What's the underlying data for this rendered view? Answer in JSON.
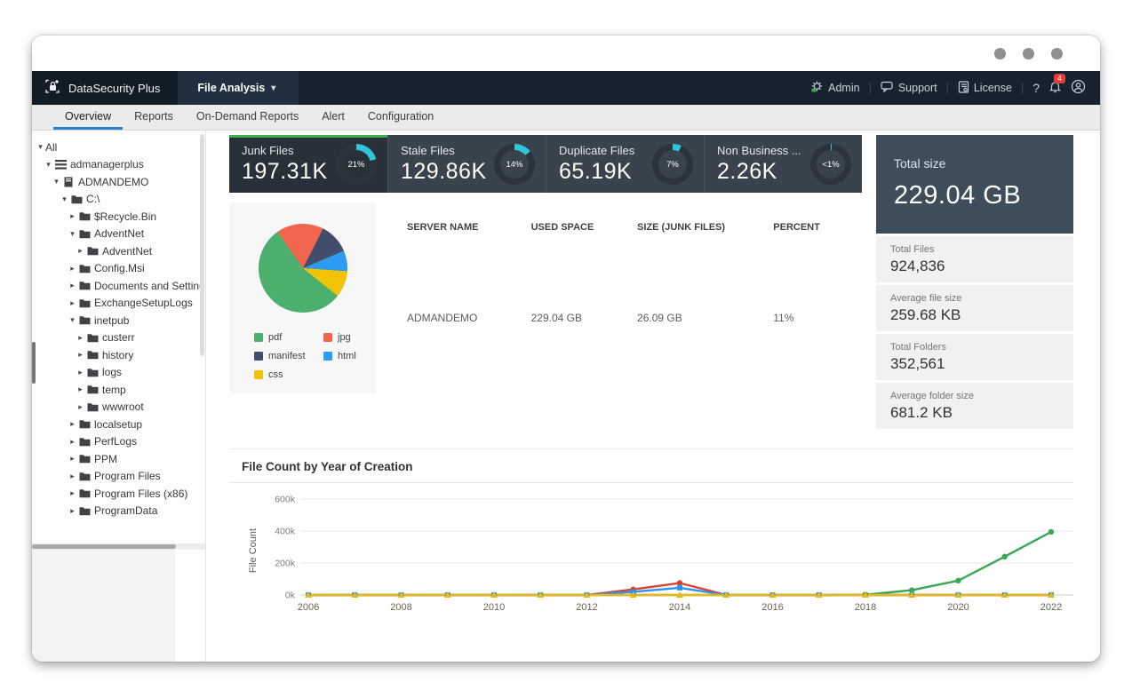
{
  "navbar": {
    "brand": "DataSecurity Plus",
    "module": "File Analysis",
    "links": [
      {
        "label": "Admin",
        "icon": "gear-icon"
      },
      {
        "label": "Support",
        "icon": "chat-icon"
      },
      {
        "label": "License",
        "icon": "license-icon"
      }
    ],
    "help_label": "?",
    "notification_count": "4"
  },
  "tabs": {
    "items": [
      "Overview",
      "Reports",
      "On-Demand Reports",
      "Alert",
      "Configuration"
    ],
    "active_index": 0
  },
  "sidebar": {
    "tree": [
      {
        "label": "All",
        "level": 0,
        "caret": "open",
        "icon": null
      },
      {
        "label": "admanagerplus",
        "level": 1,
        "caret": "open",
        "icon": "list"
      },
      {
        "label": "ADMANDEMO",
        "level": 2,
        "caret": "open",
        "icon": "server"
      },
      {
        "label": "C:\\",
        "level": 3,
        "caret": "open",
        "icon": "folder"
      },
      {
        "label": "$Recycle.Bin",
        "level": 4,
        "caret": "closed",
        "icon": "folder"
      },
      {
        "label": "AdventNet",
        "level": 4,
        "caret": "open",
        "icon": "folder"
      },
      {
        "label": "AdventNet",
        "level": 5,
        "caret": "closed",
        "icon": "folder"
      },
      {
        "label": "Config.Msi",
        "level": 4,
        "caret": "closed",
        "icon": "folder"
      },
      {
        "label": "Documents and Settings",
        "level": 4,
        "caret": "closed",
        "icon": "folder"
      },
      {
        "label": "ExchangeSetupLogs",
        "level": 4,
        "caret": "closed",
        "icon": "folder"
      },
      {
        "label": "inetpub",
        "level": 4,
        "caret": "open",
        "icon": "folder"
      },
      {
        "label": "custerr",
        "level": 5,
        "caret": "closed",
        "icon": "folder"
      },
      {
        "label": "history",
        "level": 5,
        "caret": "closed",
        "icon": "folder"
      },
      {
        "label": "logs",
        "level": 5,
        "caret": "closed",
        "icon": "folder"
      },
      {
        "label": "temp",
        "level": 5,
        "caret": "closed",
        "icon": "folder"
      },
      {
        "label": "wwwroot",
        "level": 5,
        "caret": "closed",
        "icon": "folder"
      },
      {
        "label": "localsetup",
        "level": 4,
        "caret": "closed",
        "icon": "folder"
      },
      {
        "label": "PerfLogs",
        "level": 4,
        "caret": "closed",
        "icon": "folder"
      },
      {
        "label": "PPM",
        "level": 4,
        "caret": "closed",
        "icon": "folder"
      },
      {
        "label": "Program Files",
        "level": 4,
        "caret": "closed",
        "icon": "folder"
      },
      {
        "label": "Program Files (x86)",
        "level": 4,
        "caret": "closed",
        "icon": "folder"
      },
      {
        "label": "ProgramData",
        "level": 4,
        "caret": "closed",
        "icon": "folder"
      }
    ]
  },
  "summary_cards": [
    {
      "title": "Junk Files",
      "value": "197.31K",
      "percent_label": "21%",
      "percent": 21,
      "selected": true
    },
    {
      "title": "Stale Files",
      "value": "129.86K",
      "percent_label": "14%",
      "percent": 14,
      "selected": false
    },
    {
      "title": "Duplicate Files",
      "value": "65.19K",
      "percent_label": "7%",
      "percent": 7,
      "selected": false
    },
    {
      "title": "Non Business ...",
      "value": "2.26K",
      "percent_label": "<1%",
      "percent": 0.8,
      "selected": false
    }
  ],
  "accent_colors": {
    "gauge_arc": "#2ec7d9",
    "gauge_track": "#2b343d",
    "selected_card_top": "#3cae4a"
  },
  "total_panel": {
    "title": "Total size",
    "value": "229.04 GB",
    "stats": [
      {
        "label": "Total Files",
        "value": "924,836"
      },
      {
        "label": "Average file size",
        "value": "259.68 KB"
      },
      {
        "label": "Total Folders",
        "value": "352,561"
      },
      {
        "label": "Average folder size",
        "value": "681.2 KB"
      }
    ]
  },
  "junk_table": {
    "headers": [
      "SERVER NAME",
      "USED SPACE",
      "SIZE (JUNK FILES)",
      "PERCENT"
    ],
    "rows": [
      [
        "ADMANDEMO",
        "229.04 GB",
        "26.09 GB",
        "11%"
      ]
    ]
  },
  "chart_data": [
    {
      "type": "pie",
      "slices": [
        {
          "label": "pdf",
          "color": "#4caf6e",
          "percent": 54.5
        },
        {
          "label": "jpg",
          "color": "#f2664f",
          "percent": 17.2
        },
        {
          "label": "manifest",
          "color": "#424d6b",
          "percent": 11.1
        },
        {
          "label": "html",
          "color": "#2e9af0",
          "percent": 7.5
        },
        {
          "label": "css",
          "color": "#f0c307",
          "percent": 9.7
        }
      ],
      "start_angle_deg": -35,
      "draw_order": [
        "jpg",
        "manifest",
        "html",
        "css",
        "pdf"
      ],
      "legend_position": "bottom"
    },
    {
      "type": "line",
      "title": "File Count by Year of Creation",
      "ylabel": "File Count",
      "x": [
        2006,
        2007,
        2008,
        2009,
        2010,
        2011,
        2012,
        2013,
        2014,
        2015,
        2016,
        2017,
        2018,
        2019,
        2020,
        2021,
        2022
      ],
      "x_tick_step": 2,
      "yticks_k": [
        0,
        200,
        400,
        600
      ],
      "ylim_k": [
        0,
        600
      ],
      "grid": true,
      "series": [
        {
          "name": "series-red",
          "color": "#d8432e",
          "marker": "circle",
          "values_k": [
            0,
            0,
            0,
            0,
            0,
            0,
            0,
            35,
            75,
            0,
            0,
            0,
            0,
            0,
            0,
            0,
            0
          ]
        },
        {
          "name": "series-blue",
          "color": "#3092ef",
          "marker": "square",
          "values_k": [
            0,
            0,
            0,
            0,
            0,
            0,
            0,
            20,
            45,
            0,
            0,
            0,
            0,
            0,
            0,
            0,
            0
          ]
        },
        {
          "name": "series-green",
          "color": "#3aa757",
          "marker": "circle",
          "values_k": [
            0,
            0,
            0,
            0,
            0,
            0,
            0,
            0,
            0,
            0,
            0,
            0,
            2,
            30,
            90,
            240,
            395
          ]
        },
        {
          "name": "series-yellow",
          "color": "#eab816",
          "marker": "triangle",
          "values_k": [
            0,
            0,
            0,
            0,
            0,
            0,
            0,
            0,
            0,
            0,
            0,
            0,
            0,
            0,
            0,
            0,
            0
          ]
        }
      ]
    }
  ]
}
